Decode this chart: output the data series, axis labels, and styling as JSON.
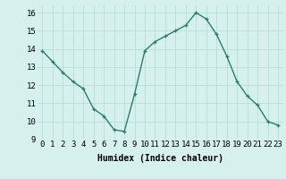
{
  "x": [
    0,
    1,
    2,
    3,
    4,
    5,
    6,
    7,
    8,
    9,
    10,
    11,
    12,
    13,
    14,
    15,
    16,
    17,
    18,
    19,
    20,
    21,
    22,
    23
  ],
  "y": [
    13.9,
    13.3,
    12.7,
    12.2,
    11.8,
    10.7,
    10.3,
    9.55,
    9.45,
    11.5,
    13.9,
    14.4,
    14.7,
    15.0,
    15.3,
    16.0,
    15.65,
    14.8,
    13.6,
    12.2,
    11.4,
    10.9,
    10.0,
    9.8
  ],
  "line_color": "#2a7d6e",
  "marker": "+",
  "bg_color": "#d6f0ee",
  "grid_color": "#b8ddd9",
  "xlabel": "Humidex (Indice chaleur)",
  "xlim": [
    -0.5,
    23.5
  ],
  "ylim": [
    9,
    16.4
  ],
  "xtick_labels": [
    "0",
    "1",
    "2",
    "3",
    "4",
    "5",
    "6",
    "7",
    "8",
    "9",
    "10",
    "11",
    "12",
    "13",
    "14",
    "15",
    "16",
    "17",
    "18",
    "19",
    "20",
    "21",
    "22",
    "23"
  ],
  "ytick_vals": [
    9,
    10,
    11,
    12,
    13,
    14,
    15,
    16
  ],
  "xlabel_fontsize": 7.0,
  "tick_fontsize": 6.5,
  "line_width": 1.0
}
